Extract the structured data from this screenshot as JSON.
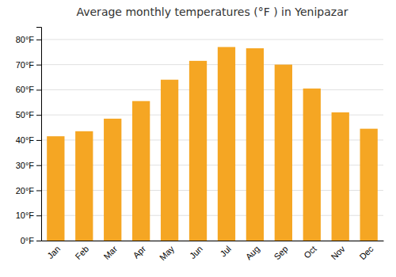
{
  "chart_data": {
    "type": "bar",
    "title": "Average monthly temperatures (°F ) in Yenipazar",
    "categories": [
      "Jan",
      "Feb",
      "Mar",
      "Apr",
      "May",
      "Jun",
      "Jul",
      "Aug",
      "Sep",
      "Oct",
      "Nov",
      "Dec"
    ],
    "values": [
      41.5,
      43.5,
      48.5,
      55.5,
      64.0,
      71.5,
      77.0,
      76.5,
      70.0,
      60.5,
      51.0,
      44.5
    ],
    "color": "#F5A623",
    "ylim": [
      0,
      85
    ],
    "yticks": [
      {
        "value": 0,
        "label": "0°F"
      },
      {
        "value": 10,
        "label": "10°F"
      },
      {
        "value": 20,
        "label": "20°F"
      },
      {
        "value": 30,
        "label": "30°F"
      },
      {
        "value": 40,
        "label": "40°F"
      },
      {
        "value": 50,
        "label": "50°F"
      },
      {
        "value": 60,
        "label": "60°F"
      },
      {
        "value": 70,
        "label": "70°F"
      },
      {
        "value": 80,
        "label": "80°F"
      }
    ],
    "grid": true
  }
}
